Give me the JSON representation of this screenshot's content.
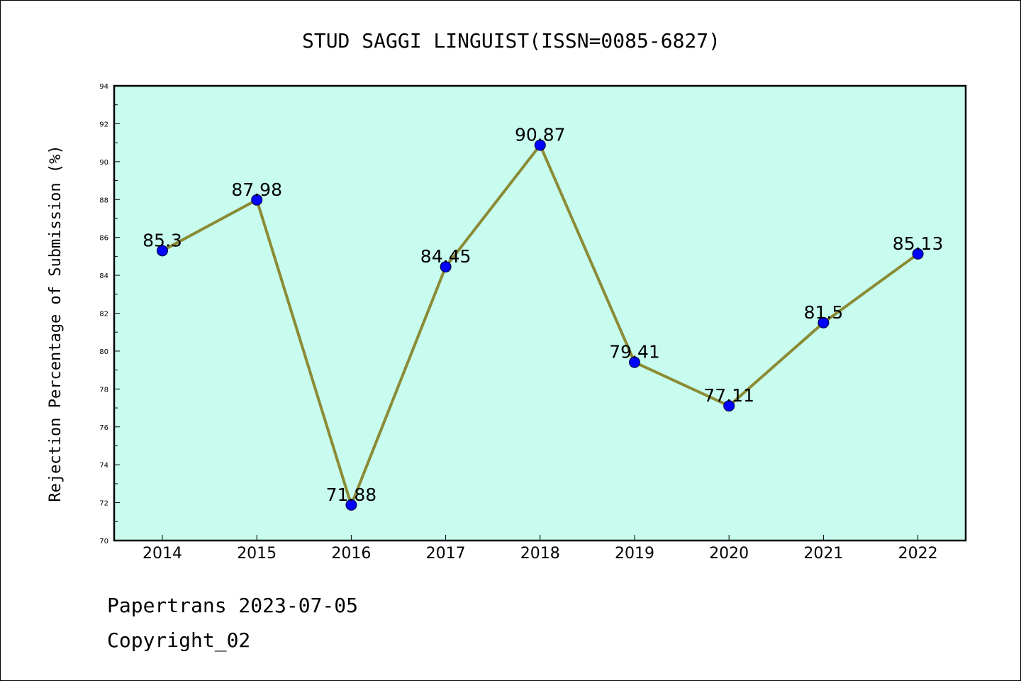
{
  "chart_data": {
    "type": "line",
    "title": "STUD SAGGI LINGUIST(ISSN=0085-6827)",
    "xlabel": "",
    "ylabel": "Rejection Percentage of Submission (%)",
    "categories": [
      "2014",
      "2015",
      "2016",
      "2017",
      "2018",
      "2019",
      "2020",
      "2021",
      "2022"
    ],
    "series": [
      {
        "values": [
          85.3,
          87.98,
          71.88,
          84.45,
          90.87,
          79.41,
          77.11,
          81.5,
          85.13
        ],
        "labels": [
          "85.3",
          "87.98",
          "71.88",
          "84.45",
          "90.87",
          "79.41",
          "77.11",
          "81.5",
          "85.13"
        ]
      }
    ],
    "ylim": [
      70,
      94
    ],
    "yticks": [
      70,
      72,
      74,
      76,
      78,
      80,
      82,
      84,
      86,
      88,
      90,
      92,
      94
    ],
    "grid": false,
    "legend": "none",
    "colors": {
      "plot_background": "#c8fcee",
      "line": "#8b8b35",
      "marker": "#0000ff"
    }
  },
  "footer": {
    "line1": "Papertrans 2023-07-05",
    "line2": "Copyright_02"
  }
}
